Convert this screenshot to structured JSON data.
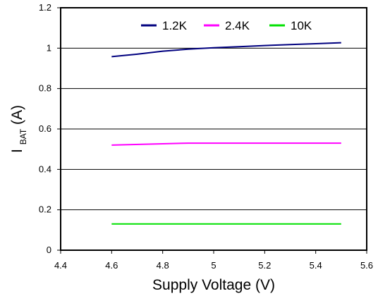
{
  "chart_data": {
    "type": "line",
    "title": "",
    "xlabel": "Supply Voltage (V)",
    "ylabel": {
      "main": "I",
      "subscript": "BAT",
      "suffix": " (A)"
    },
    "xlim": [
      4.4,
      5.6
    ],
    "ylim": [
      0,
      1.2
    ],
    "x_ticks": [
      "4.4",
      "4.6",
      "4.8",
      "5",
      "5.2",
      "5.4",
      "5.6"
    ],
    "x_tick_values": [
      4.4,
      4.6,
      4.8,
      5.0,
      5.2,
      5.4,
      5.6
    ],
    "y_ticks": [
      "0",
      "0.2",
      "0.4",
      "0.6",
      "0.8",
      "1",
      "1.2"
    ],
    "y_tick_values": [
      0,
      0.2,
      0.4,
      0.6,
      0.8,
      1.0,
      1.2
    ],
    "grid": "horizontal",
    "legend_position": "top-right",
    "series": [
      {
        "name": "1.2K",
        "color": "#00007f",
        "x": [
          4.6,
          4.7,
          4.8,
          4.9,
          5.0,
          5.1,
          5.2,
          5.3,
          5.4,
          5.5
        ],
        "y": [
          0.958,
          0.97,
          0.985,
          0.995,
          1.002,
          1.007,
          1.013,
          1.018,
          1.022,
          1.027
        ]
      },
      {
        "name": "2.4K",
        "color": "#ff00ff",
        "x": [
          4.6,
          4.9,
          5.5
        ],
        "y": [
          0.52,
          0.53,
          0.53
        ]
      },
      {
        "name": "10K",
        "color": "#00e000",
        "x": [
          4.6,
          5.5
        ],
        "y": [
          0.13,
          0.13
        ]
      }
    ]
  }
}
